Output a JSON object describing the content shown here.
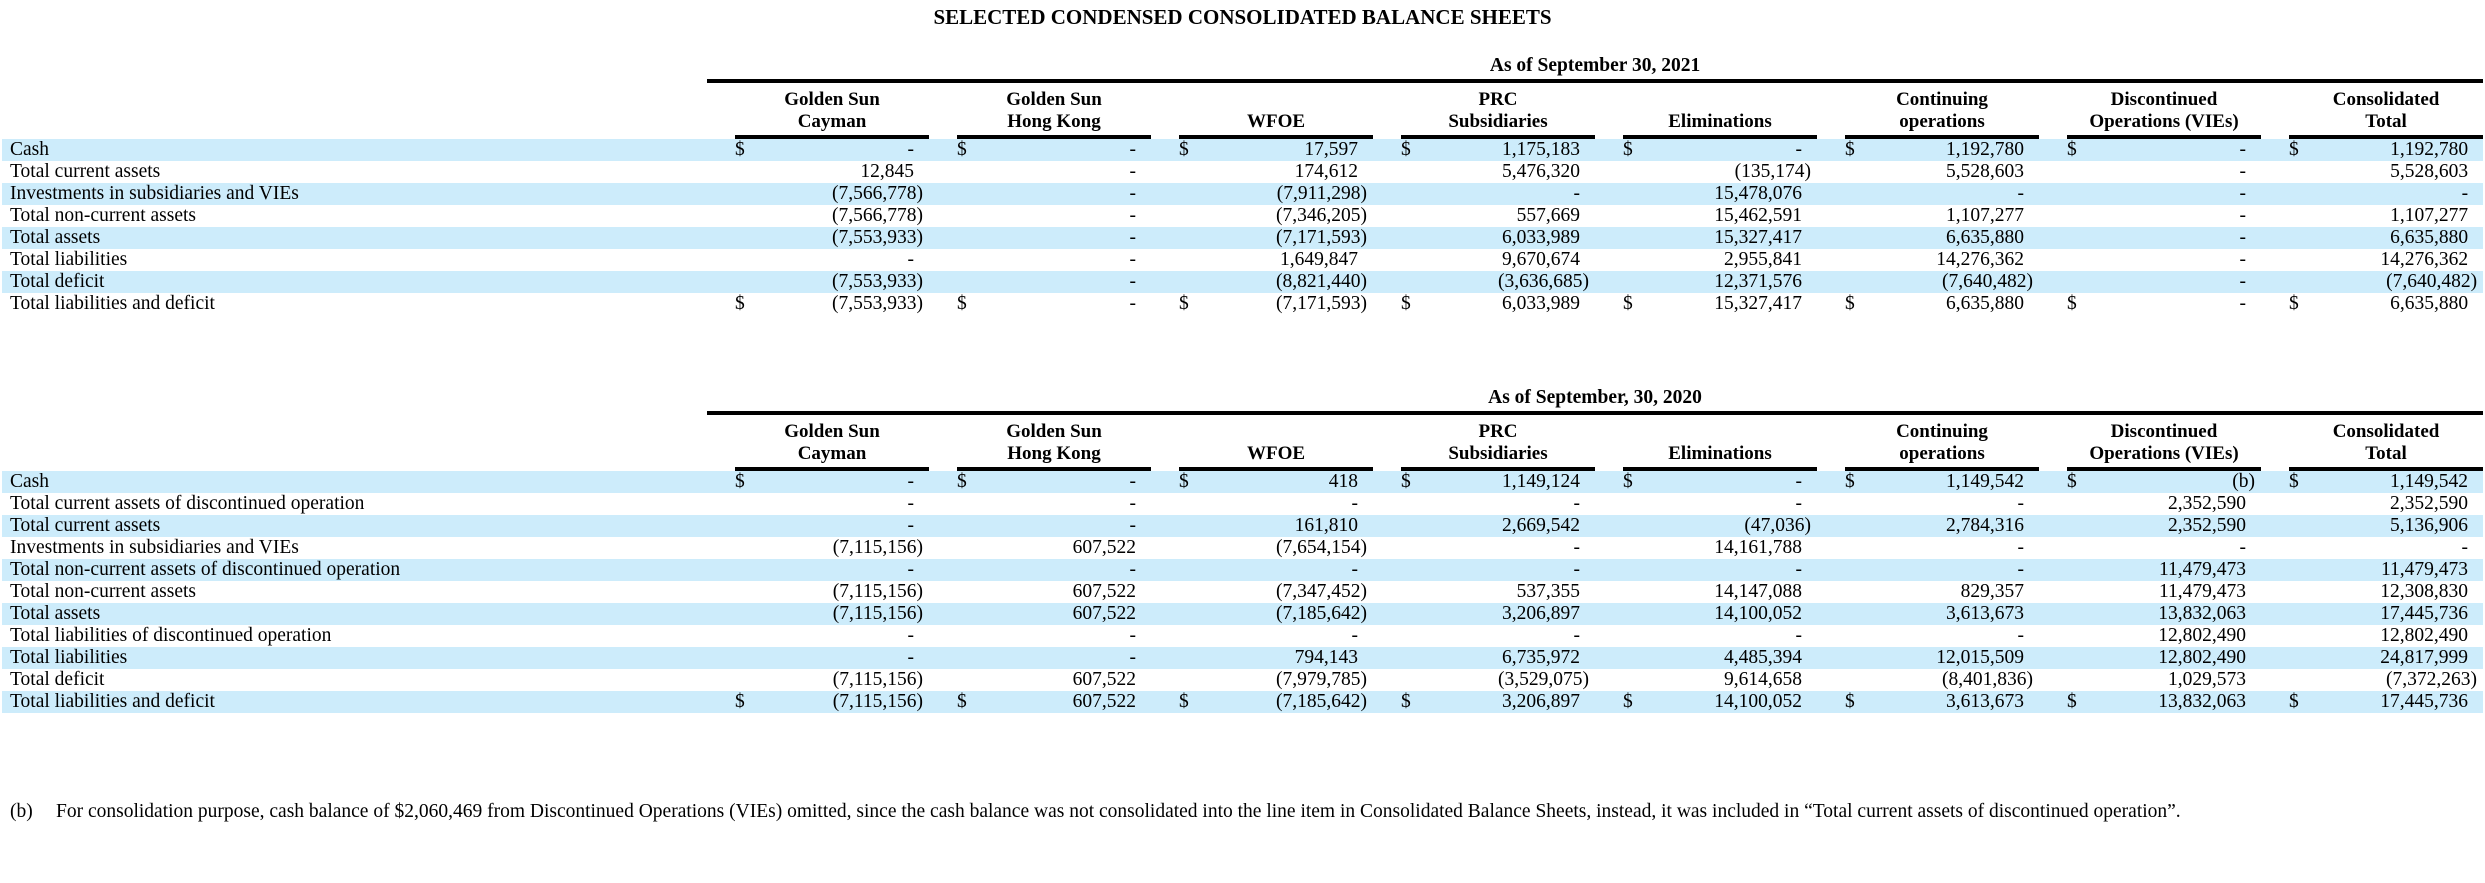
{
  "title": "SELECTED CONDENSED CONSOLIDATED BALANCE SHEETS",
  "colors": {
    "stripe": "#cdecfb",
    "rule": "#000000",
    "text": "#000000"
  },
  "columns": [
    {
      "line1": "Golden Sun",
      "line2": "Cayman"
    },
    {
      "line1": "Golden Sun",
      "line2": "Hong Kong"
    },
    {
      "line1": "",
      "line2": "WFOE"
    },
    {
      "line1": "PRC",
      "line2": "Subsidiaries"
    },
    {
      "line1": "",
      "line2": "Eliminations"
    },
    {
      "line1": "Continuing",
      "line2": "operations"
    },
    {
      "line1": "Discontinued",
      "line2": "Operations (VIEs)"
    },
    {
      "line1": "Consolidated",
      "line2": "Total"
    }
  ],
  "tables": [
    {
      "period": "As of September 30, 2021",
      "rows": [
        {
          "label": "Cash",
          "dollar": true,
          "values": [
            "-",
            "-",
            "17,597",
            "1,175,183",
            "-",
            "1,192,780",
            "-",
            "1,192,780"
          ]
        },
        {
          "label": "Total current assets",
          "dollar": false,
          "values": [
            "12,845",
            "-",
            "174,612",
            "5,476,320",
            "(135,174)",
            "5,528,603",
            "-",
            "5,528,603"
          ]
        },
        {
          "label": "Investments in subsidiaries and VIEs",
          "dollar": false,
          "values": [
            "(7,566,778)",
            "-",
            "(7,911,298)",
            "-",
            "15,478,076",
            "-",
            "-",
            "-"
          ]
        },
        {
          "label": "Total non-current assets",
          "dollar": false,
          "values": [
            "(7,566,778)",
            "-",
            "(7,346,205)",
            "557,669",
            "15,462,591",
            "1,107,277",
            "-",
            "1,107,277"
          ]
        },
        {
          "label": "Total assets",
          "dollar": false,
          "values": [
            "(7,553,933)",
            "-",
            "(7,171,593)",
            "6,033,989",
            "15,327,417",
            "6,635,880",
            "-",
            "6,635,880"
          ]
        },
        {
          "label": "Total liabilities",
          "dollar": false,
          "values": [
            "-",
            "-",
            "1,649,847",
            "9,670,674",
            "2,955,841",
            "14,276,362",
            "-",
            "14,276,362"
          ]
        },
        {
          "label": "Total deficit",
          "dollar": false,
          "values": [
            "(7,553,933)",
            "-",
            "(8,821,440)",
            "(3,636,685)",
            "12,371,576",
            "(7,640,482)",
            "-",
            "(7,640,482)"
          ]
        },
        {
          "label": "Total liabilities and deficit",
          "dollar": true,
          "values": [
            "(7,553,933)",
            "-",
            "(7,171,593)",
            "6,033,989",
            "15,327,417",
            "6,635,880",
            "-",
            "6,635,880"
          ]
        }
      ]
    },
    {
      "period": "As of September, 30, 2020",
      "rows": [
        {
          "label": "Cash",
          "dollar": true,
          "values": [
            "-",
            "-",
            "418",
            "1,149,124",
            "-",
            "1,149,542",
            "(b)",
            "1,149,542"
          ]
        },
        {
          "label": "Total current assets of discontinued operation",
          "dollar": false,
          "values": [
            "-",
            "-",
            "-",
            "-",
            "-",
            "-",
            "2,352,590",
            "2,352,590"
          ]
        },
        {
          "label": "Total current assets",
          "dollar": false,
          "values": [
            "-",
            "-",
            "161,810",
            "2,669,542",
            "(47,036)",
            "2,784,316",
            "2,352,590",
            "5,136,906"
          ]
        },
        {
          "label": "Investments in subsidiaries and VIEs",
          "dollar": false,
          "values": [
            "(7,115,156)",
            "607,522",
            "(7,654,154)",
            "-",
            "14,161,788",
            "-",
            "-",
            "-"
          ]
        },
        {
          "label": "Total non-current assets of discontinued operation",
          "dollar": false,
          "values": [
            "-",
            "-",
            "-",
            "-",
            "-",
            "-",
            "11,479,473",
            "11,479,473"
          ]
        },
        {
          "label": "Total non-current assets",
          "dollar": false,
          "values": [
            "(7,115,156)",
            "607,522",
            "(7,347,452)",
            "537,355",
            "14,147,088",
            "829,357",
            "11,479,473",
            "12,308,830"
          ]
        },
        {
          "label": "Total assets",
          "dollar": false,
          "values": [
            "(7,115,156)",
            "607,522",
            "(7,185,642)",
            "3,206,897",
            "14,100,052",
            "3,613,673",
            "13,832,063",
            "17,445,736"
          ]
        },
        {
          "label": "Total liabilities of discontinued operation",
          "dollar": false,
          "values": [
            "-",
            "-",
            "-",
            "-",
            "-",
            "-",
            "12,802,490",
            "12,802,490"
          ]
        },
        {
          "label": "Total liabilities",
          "dollar": false,
          "values": [
            "-",
            "-",
            "794,143",
            "6,735,972",
            "4,485,394",
            "12,015,509",
            "12,802,490",
            "24,817,999"
          ]
        },
        {
          "label": "Total deficit",
          "dollar": false,
          "values": [
            "(7,115,156)",
            "607,522",
            "(7,979,785)",
            "(3,529,075)",
            "9,614,658",
            "(8,401,836)",
            "1,029,573",
            "(7,372,263)"
          ]
        },
        {
          "label": "Total liabilities and deficit",
          "dollar": true,
          "values": [
            "(7,115,156)",
            "607,522",
            "(7,185,642)",
            "3,206,897",
            "14,100,052",
            "3,613,673",
            "13,832,063",
            "17,445,736"
          ]
        }
      ]
    }
  ],
  "footnote": {
    "marker": "(b)",
    "text": "For consolidation purpose, cash balance of $2,060,469 from Discontinued Operations (VIEs) omitted, since the cash balance was not consolidated into the line item in Consolidated Balance Sheets, instead, it was included in “Total current assets of discontinued operation”."
  }
}
